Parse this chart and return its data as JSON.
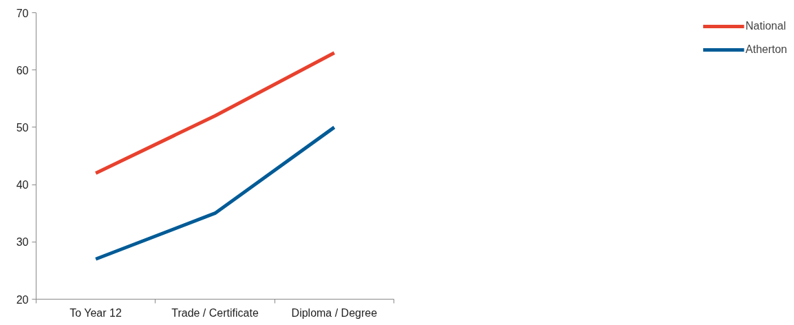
{
  "chart_data": {
    "type": "line",
    "categories": [
      "To Year 12",
      "Trade / Certificate",
      "Diploma / Degree"
    ],
    "series": [
      {
        "name": "National",
        "color": "#e8412e",
        "values": [
          42,
          52,
          63
        ]
      },
      {
        "name": "Atherton",
        "color": "#005b96",
        "values": [
          27,
          35,
          50
        ]
      }
    ],
    "ylim": [
      20,
      70
    ],
    "yticks": [
      20,
      30,
      40,
      50,
      60,
      70
    ],
    "grid": false,
    "legend": "right",
    "marker": "none",
    "line_style": "solid"
  }
}
